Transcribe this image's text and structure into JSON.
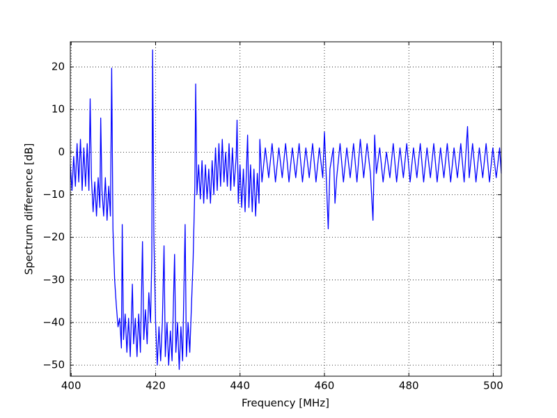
{
  "chart_data": {
    "type": "line",
    "xlabel": "Frequency [MHz]",
    "ylabel": "Spectrum difference [dB]",
    "xlim": [
      399.8,
      501.9
    ],
    "ylim": [
      -52.6,
      25.9
    ],
    "xticks": [
      400,
      420,
      440,
      460,
      480,
      500
    ],
    "yticks": [
      {
        "value": -50,
        "label": "−50"
      },
      {
        "value": -40,
        "label": "−40"
      },
      {
        "value": -30,
        "label": "−30"
      },
      {
        "value": -20,
        "label": "−20"
      },
      {
        "value": -10,
        "label": "−10"
      },
      0,
      10,
      20
    ],
    "grid": true,
    "x": [
      399.8,
      400.2,
      400.6,
      401,
      401.4,
      401.8,
      402.2,
      402.6,
      403,
      403.4,
      403.8,
      404.2,
      404.5,
      404.8,
      405.2,
      405.6,
      406,
      406.4,
      406.8,
      407,
      407.3,
      407.7,
      408.1,
      408.5,
      408.9,
      409.3,
      409.6,
      409.9,
      410.3,
      410.7,
      411.1,
      411.5,
      411.9,
      412.1,
      412.4,
      412.8,
      413.2,
      413.6,
      414,
      414.5,
      414.8,
      415.2,
      415.6,
      416,
      416.4,
      416.9,
      417.2,
      417.6,
      418,
      418.4,
      418.8,
      419.1,
      419.3,
      419.6,
      420,
      420.4,
      420.8,
      421.2,
      421.6,
      422,
      422.3,
      422.7,
      423.1,
      423.5,
      423.9,
      424.5,
      424.8,
      425.2,
      425.6,
      426,
      426.4,
      427,
      427.3,
      427.7,
      428.1,
      428.5,
      428.9,
      429.3,
      429.5,
      429.8,
      430.2,
      430.6,
      431,
      431.4,
      431.8,
      432.2,
      432.6,
      433,
      433.4,
      433.8,
      434.2,
      434.6,
      435,
      435.4,
      435.8,
      436.2,
      436.6,
      437,
      437.4,
      437.8,
      438.2,
      438.6,
      439.1,
      439.3,
      439.6,
      440,
      440.4,
      440.8,
      441.2,
      441.6,
      441.8,
      442.1,
      442.5,
      442.9,
      443.3,
      443.7,
      444.1,
      444.5,
      444.7,
      445.2,
      446,
      446.8,
      447.6,
      448.4,
      449.2,
      450,
      450.8,
      451.6,
      452.4,
      453.2,
      454,
      454.8,
      455.6,
      456.4,
      457.2,
      458,
      458.8,
      459.6,
      460,
      460.4,
      460.9,
      461.3,
      462.1,
      462.5,
      462.9,
      463.7,
      464.5,
      465.3,
      466.1,
      466.9,
      467.7,
      468.5,
      469.3,
      470.1,
      470.9,
      471.5,
      471.9,
      472.3,
      473.1,
      473.9,
      474.7,
      475.5,
      476.3,
      477.1,
      477.9,
      478.7,
      479.5,
      480.3,
      481.1,
      481.9,
      482.7,
      483.5,
      484.3,
      485.1,
      485.9,
      486.7,
      487.5,
      488.3,
      489.1,
      489.9,
      490.7,
      491.5,
      492.3,
      493.1,
      493.9,
      494.3,
      495.1,
      495.9,
      496.7,
      497.5,
      498.3,
      499.1,
      499.9,
      500.7,
      501.5,
      501.9
    ],
    "series": [
      {
        "color": "#0000ff",
        "values": [
          -3,
          -9,
          -1,
          -8,
          2,
          -7,
          3,
          -9,
          1,
          -8,
          2,
          -9,
          12.5,
          -6,
          -14,
          -7,
          -15,
          -6,
          -13,
          8,
          -9,
          -15,
          -6,
          -16,
          -8,
          -15,
          19.7,
          -18,
          -30,
          -36,
          -41,
          -39,
          -46,
          -17,
          -44,
          -38,
          -47,
          -39,
          -48,
          -31,
          -45,
          -39,
          -48,
          -38,
          -47,
          -21,
          -44,
          -37,
          -45,
          -33,
          -40,
          -25,
          24,
          -20,
          -40,
          -50,
          -41,
          -49,
          -40,
          -22,
          -48,
          -40,
          -50,
          -42,
          -49,
          -24,
          -47,
          -40,
          -51,
          -41,
          -49,
          -17,
          -48,
          -40,
          -47,
          -36,
          -25,
          -8,
          16,
          -10,
          -3,
          -11,
          -2,
          -12,
          -3,
          -11,
          -4,
          -12,
          -2,
          -10,
          1,
          -9,
          2,
          -8,
          3,
          -7,
          0,
          -8,
          2,
          -9,
          1,
          -8,
          -1,
          7.5,
          -12,
          -3,
          -13,
          -4,
          -14,
          -2,
          4,
          -13,
          -3,
          -14,
          -4,
          -15,
          -5,
          -12,
          3,
          -7,
          1,
          -6,
          2,
          -7,
          1,
          -6,
          2,
          -7,
          1,
          -6,
          2,
          -7,
          1,
          -6,
          2,
          -7,
          1,
          -6,
          4.7,
          -5,
          -18,
          -4,
          1,
          -12,
          -6,
          2,
          -7,
          1,
          -6,
          2,
          -7,
          3,
          -6,
          2,
          -5,
          -16,
          4,
          -5,
          1,
          -7,
          0,
          -6,
          2,
          -7,
          1,
          -6,
          2,
          -7,
          1,
          -6,
          2,
          -7,
          1,
          -6,
          2,
          -7,
          1,
          -6,
          2,
          -7,
          1,
          -6,
          2,
          -7,
          6,
          -6,
          2,
          -7,
          1,
          -6,
          2,
          -7,
          1,
          -6,
          1,
          -5
        ]
      }
    ]
  }
}
